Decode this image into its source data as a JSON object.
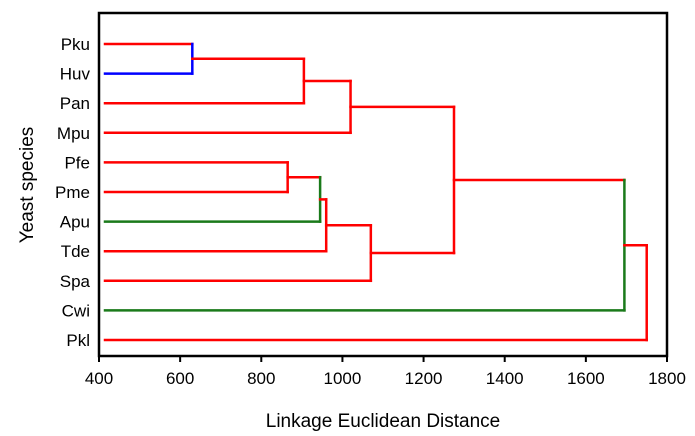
{
  "chart_data": {
    "type": "dendrogram",
    "title": "",
    "xlabel": "Linkage Euclidean Distance",
    "ylabel": "Yeast species",
    "xlim": [
      400,
      1800
    ],
    "xticks": [
      400,
      600,
      800,
      1000,
      1200,
      1400,
      1600,
      1800
    ],
    "grid": false,
    "leaves": [
      "Pku",
      "Huv",
      "Pan",
      "Mpu",
      "Pfe",
      "Pme",
      "Apu",
      "Tde",
      "Spa",
      "Cwi",
      "Pkl"
    ],
    "merges": [
      {
        "left": "Pku",
        "right": "Huv",
        "height": 630,
        "colors": [
          "#ff0000",
          "#0000ff"
        ]
      },
      {
        "left": "M1",
        "right": "Pan",
        "height": 905,
        "colors": [
          "#ff0000",
          "#ff0000"
        ]
      },
      {
        "left": "M2",
        "right": "Mpu",
        "height": 1020,
        "colors": [
          "#ff0000",
          "#ff0000"
        ]
      },
      {
        "left": "Pfe",
        "right": "Pme",
        "height": 865,
        "colors": [
          "#ff0000",
          "#ff0000"
        ]
      },
      {
        "left": "M4",
        "right": "Apu",
        "height": 945,
        "colors": [
          "#ff0000",
          "#1a7a1a"
        ]
      },
      {
        "left": "M5",
        "right": "Tde",
        "height": 960,
        "colors": [
          "#ff0000",
          "#ff0000"
        ]
      },
      {
        "left": "M6",
        "right": "Spa",
        "height": 1070,
        "colors": [
          "#ff0000",
          "#ff0000"
        ]
      },
      {
        "left": "M3",
        "right": "M7",
        "height": 1275,
        "colors": [
          "#ff0000",
          "#ff0000"
        ]
      },
      {
        "left": "M8",
        "right": "Cwi",
        "height": 1695,
        "colors": [
          "#ff0000",
          "#1a7a1a"
        ]
      },
      {
        "left": "M9",
        "right": "Pkl",
        "height": 1750,
        "colors": [
          "#ff0000",
          "#ff0000"
        ]
      }
    ]
  }
}
